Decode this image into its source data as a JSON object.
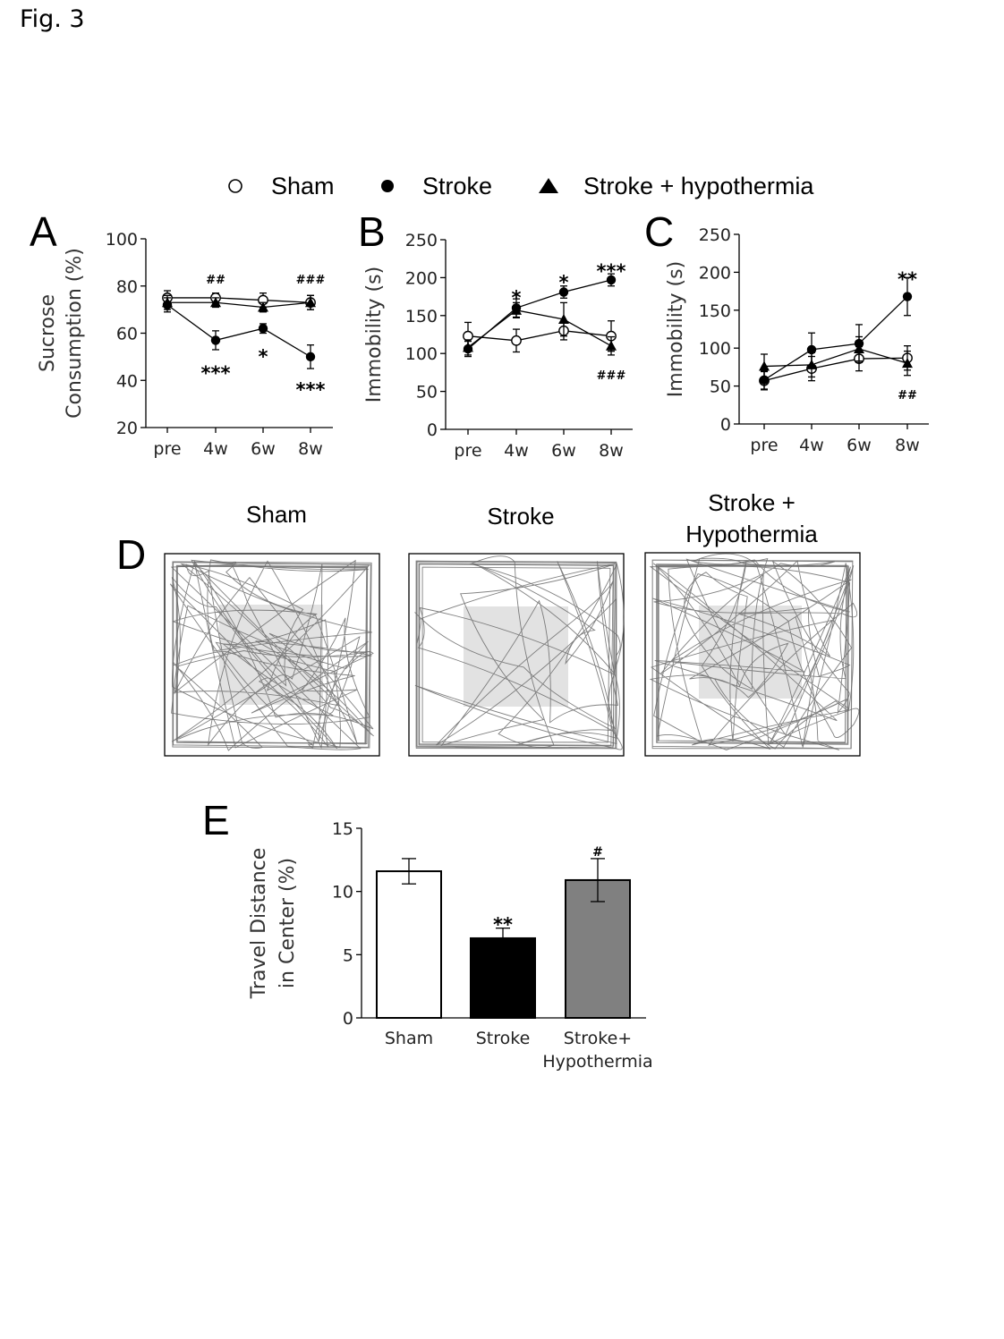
{
  "figure_label": "Fig. 3",
  "legend": {
    "items": [
      {
        "label": "Sham",
        "marker": "open-circle"
      },
      {
        "label": "Stroke",
        "marker": "filled-circle"
      },
      {
        "label": "Stroke + hypothermia",
        "marker": "filled-triangle"
      }
    ]
  },
  "chart_data": [
    {
      "panel": "A",
      "type": "line",
      "categories": [
        "pre",
        "4w",
        "6w",
        "8w"
      ],
      "ylabel": "Sucrose Consumption (%)",
      "ylim": [
        20,
        100
      ],
      "yticks": [
        20,
        40,
        60,
        80,
        100
      ],
      "series": [
        {
          "name": "Sham",
          "marker": "open-circle",
          "values": [
            75,
            75,
            74,
            73
          ],
          "err": [
            3,
            2,
            3,
            3
          ]
        },
        {
          "name": "Stroke",
          "marker": "filled-circle",
          "values": [
            72,
            57,
            62,
            50
          ],
          "err": [
            3,
            4,
            2,
            5
          ]
        },
        {
          "name": "Stroke + hypothermia",
          "marker": "filled-triangle",
          "values": [
            73,
            73,
            71,
            73
          ],
          "err": [
            3,
            2,
            2,
            3
          ]
        }
      ],
      "annotations": [
        {
          "category": "4w",
          "text": "##",
          "y": 84,
          "size": "small"
        },
        {
          "category": "8w",
          "text": "###",
          "y": 84,
          "size": "small"
        },
        {
          "category": "4w",
          "text": "***",
          "y": 45,
          "size": "large"
        },
        {
          "category": "6w",
          "text": "*",
          "y": 52,
          "size": "large"
        },
        {
          "category": "8w",
          "text": "***",
          "y": 38,
          "size": "large"
        }
      ]
    },
    {
      "panel": "B",
      "type": "line",
      "categories": [
        "pre",
        "4w",
        "6w",
        "8w"
      ],
      "ylabel": "Immobility (s)",
      "ylim": [
        0,
        250
      ],
      "yticks": [
        0,
        50,
        100,
        150,
        200,
        250
      ],
      "series": [
        {
          "name": "Sham",
          "marker": "open-circle",
          "values": [
            123,
            117,
            130,
            123
          ],
          "err": [
            18,
            15,
            12,
            20
          ]
        },
        {
          "name": "Stroke",
          "marker": "filled-circle",
          "values": [
            106,
            160,
            181,
            197
          ],
          "err": [
            10,
            12,
            8,
            8
          ]
        },
        {
          "name": "Stroke + hypothermia",
          "marker": "filled-triangle",
          "values": [
            108,
            157,
            145,
            110
          ],
          "err": [
            10,
            10,
            22,
            12
          ]
        }
      ],
      "annotations": [
        {
          "category": "4w",
          "text": "*",
          "y": 180,
          "size": "large"
        },
        {
          "category": "6w",
          "text": "*",
          "y": 200,
          "size": "large"
        },
        {
          "category": "8w",
          "text": "***",
          "y": 215,
          "size": "large"
        },
        {
          "category": "8w",
          "text": "###",
          "y": 75,
          "size": "small"
        }
      ]
    },
    {
      "panel": "C",
      "type": "line",
      "categories": [
        "pre",
        "4w",
        "6w",
        "8w"
      ],
      "ylabel": "Immobility (s)",
      "ylim": [
        0,
        250
      ],
      "yticks": [
        0,
        50,
        100,
        150,
        200,
        250
      ],
      "series": [
        {
          "name": "Sham",
          "marker": "open-circle",
          "values": [
            57,
            73,
            86,
            87
          ],
          "err": [
            12,
            16,
            16,
            16
          ]
        },
        {
          "name": "Stroke",
          "marker": "filled-circle",
          "values": [
            58,
            98,
            106,
            168
          ],
          "err": [
            12,
            22,
            25,
            25
          ]
        },
        {
          "name": "Stroke + hypothermia",
          "marker": "filled-triangle",
          "values": [
            76,
            78,
            99,
            80
          ],
          "err": [
            16,
            16,
            16,
            16
          ]
        }
      ],
      "annotations": [
        {
          "category": "8w",
          "text": "**",
          "y": 197,
          "size": "large"
        },
        {
          "category": "8w",
          "text": "##",
          "y": 42,
          "size": "small"
        }
      ]
    },
    {
      "panel": "E",
      "type": "bar",
      "categories": [
        "Sham",
        "Stroke",
        "Stroke+ Hypothermia"
      ],
      "ylabel": "Travel Distance in Center (%)",
      "ylim": [
        0,
        15
      ],
      "yticks": [
        0,
        5,
        10,
        15
      ],
      "values": [
        11.6,
        6.3,
        10.9
      ],
      "err": [
        1.0,
        0.8,
        1.7
      ],
      "colors": [
        "#ffffff",
        "#000000",
        "#808080"
      ],
      "annotations": [
        {
          "category": "Stroke",
          "text": "**",
          "y": 7.6,
          "size": "large"
        },
        {
          "category": "Stroke+ Hypothermia",
          "text": "#",
          "y": 13.3,
          "size": "small"
        }
      ]
    }
  ],
  "panel_D": {
    "panel_letter": "D",
    "titles": [
      "Sham",
      "Stroke",
      "Stroke +\nHypothermia"
    ],
    "trace_density": [
      85,
      40,
      80
    ],
    "center_fill": "#e2e2e2"
  }
}
